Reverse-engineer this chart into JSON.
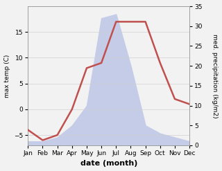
{
  "months": [
    "Jan",
    "Feb",
    "Mar",
    "Apr",
    "May",
    "Jun",
    "Jul",
    "Aug",
    "Sep",
    "Oct",
    "Nov",
    "Dec"
  ],
  "temperature": [
    -4,
    -6,
    -5,
    0,
    8,
    9,
    17,
    17,
    17,
    9,
    2,
    1
  ],
  "precipitation": [
    1,
    1,
    2,
    5,
    10,
    32,
    33,
    20,
    5,
    3,
    2,
    1
  ],
  "temp_color": "#c0504d",
  "precip_fill_color": "#c5cce8",
  "temp_ylim": [
    -7,
    20
  ],
  "precip_ylim": [
    0,
    35
  ],
  "temp_yticks": [
    -5,
    0,
    5,
    10,
    15
  ],
  "precip_yticks": [
    0,
    5,
    10,
    15,
    20,
    25,
    30,
    35
  ],
  "ylabel_left": "max temp (C)",
  "ylabel_right": "med. precipitation (kg/m2)",
  "xlabel": "date (month)",
  "background_color": "#f2f2f2",
  "plot_bg_color": "#ffffff",
  "figsize": [
    3.2,
    2.47
  ],
  "dpi": 100
}
